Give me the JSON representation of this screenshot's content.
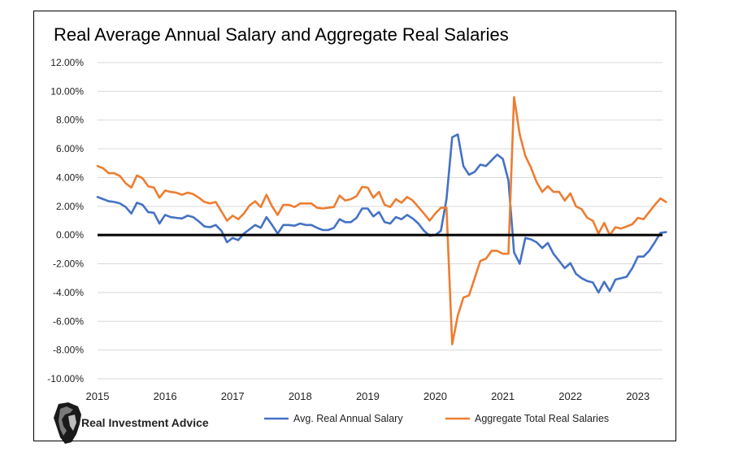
{
  "colors": {
    "series1": "#4472C4",
    "series2": "#ED7D31",
    "grid": "#d9d9d9",
    "zero_line": "#000000"
  },
  "brand": {
    "name": "Real Investment Advice",
    "logo_icon": "lion-head-icon"
  },
  "chart_data": {
    "type": "line",
    "title": "Real Average Annual Salary and Aggregate Real Salaries",
    "xlabel": "",
    "ylabel": "",
    "ylim": [
      -0.1,
      0.12
    ],
    "y_ticks": [
      0.12,
      0.1,
      0.08,
      0.06,
      0.04,
      0.02,
      0.0,
      -0.02,
      -0.04,
      -0.06,
      -0.08,
      -0.1
    ],
    "y_tick_labels": [
      "12.00%",
      "10.00%",
      "8.00%",
      "6.00%",
      "4.00%",
      "2.00%",
      "0.00%",
      "-2.00%",
      "-4.00%",
      "-6.00%",
      "-8.00%",
      "-10.00%"
    ],
    "x_tick_labels": [
      "2015",
      "2016",
      "2017",
      "2018",
      "2019",
      "2020",
      "2021",
      "2022",
      "2023"
    ],
    "x_start": "2015-01",
    "x_end": "2023-06",
    "grid": true,
    "legend_position": "bottom",
    "series": [
      {
        "name": "Avg. Real Annual Salary",
        "values": [
          2.65,
          2.5,
          2.35,
          2.3,
          2.2,
          1.95,
          1.5,
          2.25,
          2.1,
          1.6,
          1.55,
          0.8,
          1.4,
          1.25,
          1.2,
          1.15,
          1.35,
          1.25,
          0.95,
          0.6,
          0.55,
          0.7,
          0.3,
          -0.5,
          -0.2,
          -0.35,
          0.1,
          0.4,
          0.7,
          0.5,
          1.25,
          0.7,
          0.1,
          0.7,
          0.7,
          0.65,
          0.8,
          0.7,
          0.7,
          0.5,
          0.35,
          0.35,
          0.5,
          1.1,
          0.9,
          0.9,
          1.2,
          1.85,
          1.85,
          1.3,
          1.6,
          0.9,
          0.8,
          1.25,
          1.1,
          1.4,
          1.15,
          0.8,
          0.3,
          -0.05,
          0.0,
          0.3,
          2.5,
          6.8,
          7.0,
          4.8,
          4.2,
          4.4,
          4.9,
          4.8,
          5.2,
          5.6,
          5.3,
          3.8,
          -1.2,
          -2.0,
          -0.2,
          -0.3,
          -0.5,
          -0.9,
          -0.55,
          -1.3,
          -1.8,
          -2.3,
          -1.95,
          -2.7,
          -3.0,
          -3.2,
          -3.3,
          -4.0,
          -3.25,
          -3.9,
          -3.1,
          -3.0,
          -2.9,
          -2.3,
          -1.5,
          -1.5,
          -1.1,
          -0.5,
          0.15,
          0.2
        ]
      },
      {
        "name": "Aggregate Total Real Salaries",
        "values": [
          4.8,
          4.65,
          4.3,
          4.3,
          4.1,
          3.6,
          3.3,
          4.15,
          3.95,
          3.4,
          3.3,
          2.6,
          3.1,
          3.0,
          2.95,
          2.8,
          2.95,
          2.85,
          2.6,
          2.3,
          2.2,
          2.3,
          1.65,
          1.0,
          1.35,
          1.1,
          1.5,
          2.05,
          2.35,
          1.95,
          2.8,
          2.0,
          1.4,
          2.1,
          2.1,
          1.95,
          2.2,
          2.2,
          2.2,
          1.9,
          1.85,
          1.9,
          1.95,
          2.75,
          2.4,
          2.5,
          2.7,
          3.35,
          3.3,
          2.6,
          3.0,
          2.1,
          1.95,
          2.5,
          2.25,
          2.65,
          2.4,
          1.95,
          1.5,
          1.0,
          1.5,
          1.9,
          1.9,
          -7.6,
          -5.6,
          -4.35,
          -4.2,
          -3.0,
          -1.8,
          -1.65,
          -1.1,
          -1.1,
          -1.3,
          -1.3,
          9.6,
          7.0,
          5.5,
          4.7,
          3.7,
          3.0,
          3.4,
          3.0,
          3.0,
          2.4,
          2.9,
          2.0,
          1.8,
          1.2,
          1.0,
          0.1,
          0.85,
          0.0,
          0.55,
          0.45,
          0.6,
          0.75,
          1.2,
          1.1,
          1.6,
          2.1,
          2.55,
          2.3
        ]
      }
    ]
  }
}
